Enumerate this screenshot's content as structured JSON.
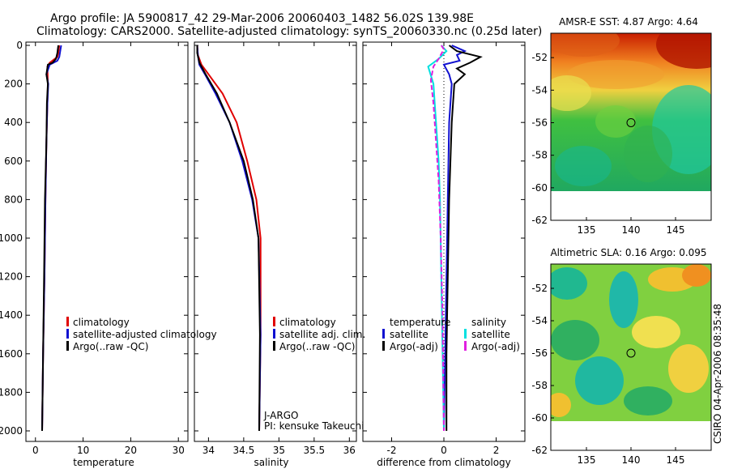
{
  "header": {
    "line1": "Argo profile: JA 5900817_42 29-Mar-2006 20060403_1482 56.02S 139.98E",
    "line2": "Climatology: CARS2000. Satellite-adjusted climatology: synTS_20060330.nc (0.25d later)"
  },
  "side_label": "CSIRO 04-Apr-2006 08:35:48",
  "colors": {
    "climatology": "#e00000",
    "satellite": "#1010d0",
    "argo": "#000000",
    "sal_satellite": "#00e0e0",
    "sal_argo": "#e020e0"
  },
  "chart_data": [
    {
      "type": "line",
      "panel": "temperature",
      "xlabel": "temperature",
      "ylabel": "",
      "xlim": [
        -2,
        32
      ],
      "ylim": [
        2000,
        0
      ],
      "xticks": [
        0,
        10,
        20,
        30
      ],
      "yticks": [
        0,
        200,
        400,
        600,
        800,
        1000,
        1200,
        1400,
        1600,
        1800,
        2000
      ],
      "legend": [
        "climatology",
        "satellite-adjusted climatology",
        "Argo(..raw -QC)"
      ],
      "series": [
        {
          "name": "climatology",
          "color": "#e00000",
          "points": [
            [
              5.0,
              0
            ],
            [
              4.8,
              40
            ],
            [
              4.6,
              60
            ],
            [
              3.0,
              90
            ],
            [
              2.5,
              110
            ],
            [
              2.6,
              200
            ],
            [
              2.5,
              300
            ],
            [
              2.3,
              500
            ],
            [
              2.1,
              800
            ],
            [
              1.9,
              1200
            ],
            [
              1.6,
              1600
            ],
            [
              1.4,
              2000
            ]
          ]
        },
        {
          "name": "satellite-adjusted climatology",
          "color": "#1010d0",
          "points": [
            [
              5.4,
              0
            ],
            [
              5.0,
              60
            ],
            [
              4.6,
              80
            ],
            [
              3.0,
              100
            ],
            [
              2.3,
              150
            ],
            [
              2.7,
              200
            ],
            [
              2.5,
              300
            ],
            [
              2.3,
              500
            ],
            [
              2.1,
              800
            ],
            [
              1.9,
              1200
            ],
            [
              1.6,
              1600
            ],
            [
              1.4,
              2000
            ]
          ]
        },
        {
          "name": "Argo(..raw -QC)",
          "color": "#000000",
          "points": [
            [
              4.8,
              0
            ],
            [
              4.6,
              40
            ],
            [
              4.3,
              70
            ],
            [
              3.6,
              90
            ],
            [
              2.6,
              100
            ],
            [
              2.3,
              150
            ],
            [
              2.6,
              200
            ],
            [
              2.4,
              300
            ],
            [
              2.3,
              500
            ],
            [
              2.0,
              800
            ],
            [
              1.8,
              1200
            ],
            [
              1.6,
              1600
            ],
            [
              1.4,
              2000
            ]
          ]
        }
      ]
    },
    {
      "type": "line",
      "panel": "salinity",
      "xlabel": "salinity",
      "xlim": [
        33.8,
        36.1
      ],
      "ylim": [
        2000,
        0
      ],
      "xticks": [
        34,
        34.5,
        35,
        35.5,
        36
      ],
      "xticklabels": [
        "34",
        "34.5",
        "35",
        "35.5",
        "36"
      ],
      "legend": [
        "climatology",
        "satellite adj. clim.",
        "Argo(..raw -QC)"
      ],
      "annotation": [
        "J-ARGO",
        "PI: kensuke Takeuchi"
      ],
      "series": [
        {
          "name": "climatology",
          "color": "#e00000",
          "points": [
            [
              33.84,
              0
            ],
            [
              33.85,
              50
            ],
            [
              33.9,
              100
            ],
            [
              34.0,
              150
            ],
            [
              34.2,
              250
            ],
            [
              34.4,
              400
            ],
            [
              34.55,
              600
            ],
            [
              34.68,
              800
            ],
            [
              34.74,
              1000
            ],
            [
              34.74,
              1500
            ],
            [
              34.72,
              2000
            ]
          ]
        },
        {
          "name": "satellite adj. clim.",
          "color": "#1010d0",
          "points": [
            [
              33.84,
              0
            ],
            [
              33.85,
              50
            ],
            [
              33.87,
              100
            ],
            [
              33.95,
              150
            ],
            [
              34.1,
              250
            ],
            [
              34.3,
              400
            ],
            [
              34.48,
              600
            ],
            [
              34.62,
              800
            ],
            [
              34.71,
              1000
            ],
            [
              34.74,
              1500
            ],
            [
              34.72,
              2000
            ]
          ]
        },
        {
          "name": "Argo(..raw -QC)",
          "color": "#000000",
          "points": [
            [
              33.84,
              0
            ],
            [
              33.84,
              40
            ],
            [
              33.87,
              90
            ],
            [
              33.96,
              150
            ],
            [
              34.12,
              250
            ],
            [
              34.3,
              400
            ],
            [
              34.5,
              600
            ],
            [
              34.63,
              800
            ],
            [
              34.71,
              1000
            ],
            [
              34.73,
              1500
            ],
            [
              34.72,
              2000
            ]
          ]
        }
      ]
    },
    {
      "type": "line",
      "panel": "difference",
      "xlabel": "difference from climatology",
      "xlim": [
        -3.1,
        3.1
      ],
      "ylim": [
        2000,
        0
      ],
      "xticks": [
        -2,
        0,
        2
      ],
      "legend_left_title": "temperature",
      "legend_right_title": "salinity",
      "legend": [
        "satellite",
        "Argo(-adj)",
        "satellite",
        "Argo(-adj)"
      ],
      "series": [
        {
          "name": "temperature satellite",
          "color": "#1010d0",
          "points": [
            [
              0.3,
              0
            ],
            [
              0.8,
              30
            ],
            [
              0.5,
              50
            ],
            [
              0.6,
              80
            ],
            [
              0.0,
              100
            ],
            [
              0.2,
              150
            ],
            [
              0.3,
              200
            ],
            [
              0.2,
              400
            ],
            [
              0.15,
              800
            ],
            [
              0.1,
              1200
            ],
            [
              0.05,
              1600
            ],
            [
              0.0,
              2000
            ]
          ]
        },
        {
          "name": "temperature Argo(-adj)",
          "color": "#000000",
          "points": [
            [
              0.2,
              0
            ],
            [
              0.5,
              30
            ],
            [
              1.4,
              60
            ],
            [
              1.0,
              90
            ],
            [
              0.5,
              120
            ],
            [
              0.8,
              150
            ],
            [
              0.4,
              200
            ],
            [
              0.3,
              400
            ],
            [
              0.2,
              800
            ],
            [
              0.15,
              1200
            ],
            [
              0.1,
              1600
            ],
            [
              0.1,
              2000
            ]
          ]
        },
        {
          "name": "salinity satellite",
          "color": "#00e0e0",
          "points": [
            [
              -0.1,
              0
            ],
            [
              0.1,
              30
            ],
            [
              -0.2,
              70
            ],
            [
              -0.6,
              110
            ],
            [
              -0.4,
              200
            ],
            [
              -0.3,
              400
            ],
            [
              -0.2,
              600
            ],
            [
              -0.15,
              800
            ],
            [
              -0.1,
              1200
            ],
            [
              -0.05,
              1600
            ],
            [
              0.0,
              2000
            ]
          ]
        },
        {
          "name": "salinity Argo(-adj)",
          "color": "#e020e0",
          "points": [
            [
              -0.1,
              0
            ],
            [
              0.0,
              20
            ],
            [
              -0.2,
              70
            ],
            [
              -0.4,
              110
            ],
            [
              -0.5,
              180
            ],
            [
              -0.4,
              300
            ],
            [
              -0.3,
              500
            ],
            [
              -0.2,
              700
            ],
            [
              -0.12,
              1000
            ],
            [
              -0.05,
              1400
            ],
            [
              0.0,
              2000
            ]
          ]
        }
      ]
    },
    {
      "type": "heatmap",
      "panel": "sst-map",
      "title": "AMSR-E SST: 4.87  Argo: 4.64",
      "xlim": [
        131,
        149
      ],
      "ylim": [
        -62,
        -50.5
      ],
      "xticks": [
        135,
        140,
        145
      ],
      "yticks": [
        -52,
        -54,
        -56,
        -58,
        -60,
        -62
      ],
      "marker": {
        "lon": 140,
        "lat": -56
      }
    },
    {
      "type": "heatmap",
      "panel": "sla-map",
      "title": "Altimetric SLA: 0.16  Argo: 0.095",
      "xlim": [
        131,
        149
      ],
      "ylim": [
        -62,
        -50.5
      ],
      "xticks": [
        135,
        140,
        145
      ],
      "yticks": [
        -52,
        -54,
        -56,
        -58,
        -60,
        -62
      ],
      "marker": {
        "lon": 140,
        "lat": -56
      }
    }
  ]
}
